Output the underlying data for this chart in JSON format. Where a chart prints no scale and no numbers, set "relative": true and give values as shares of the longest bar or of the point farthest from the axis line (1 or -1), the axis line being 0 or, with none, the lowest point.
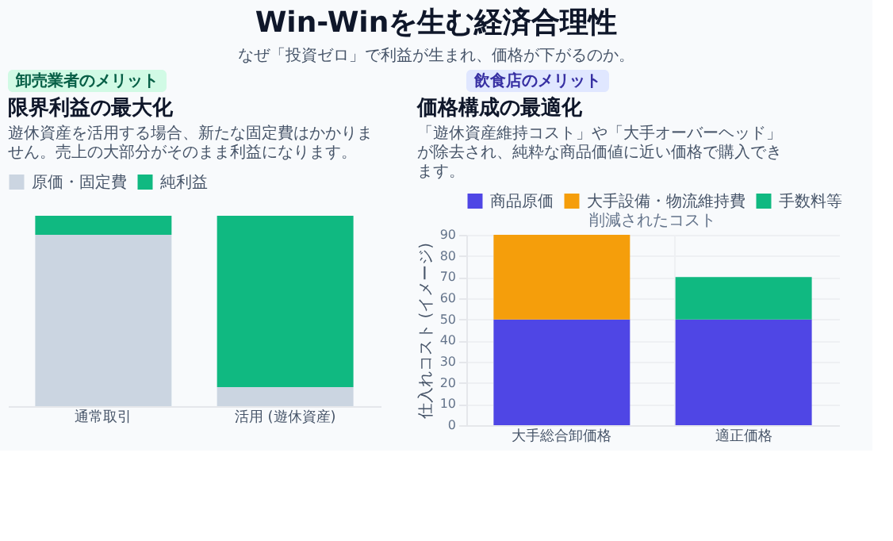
{
  "chart_data": [
    {
      "type": "other",
      "title": "Win-Winを生む経済合理性",
      "subtitle": "なぜ「投資ゼロ」で利益が生まれ、価格が下がるのか。"
    },
    {
      "type": "bar",
      "stacked": true,
      "relative": true,
      "title": "限界利益の最大化",
      "subtitle": "遊休資産を活用する場合、新たな固定費はかかりません。売上の大部分がそのまま利益になります。",
      "annotations": [
        "卸売業者のメリット"
      ],
      "categories": [
        "通常取引",
        "活用 (遊休資産)"
      ],
      "series": [
        {
          "name": "原価・固定費",
          "color": "#cbd5e1",
          "values": [
            0.9,
            0.1
          ]
        },
        {
          "name": "純利益",
          "color": "#10b981",
          "values": [
            0.1,
            0.9
          ]
        }
      ],
      "legend": "top",
      "grid": false
    },
    {
      "type": "bar",
      "stacked": true,
      "title": "価格構成の最適化",
      "subtitle": "「遊休資産維持コスト」や「大手オーバーヘッド」が除去され、純粋な商品価値に近い価格で購入できます。",
      "annotations": [
        "飲食店のメリット",
        "削減されたコスト"
      ],
      "categories": [
        "大手総合卸価格",
        "適正価格"
      ],
      "ylabel": "仕入れコスト (イメージ)",
      "series": [
        {
          "name": "商品原価",
          "color": "#4f46e5",
          "values": [
            50,
            50
          ]
        },
        {
          "name": "大手設備・物流維持費",
          "color": "#f59e0b",
          "values": [
            40,
            0
          ]
        },
        {
          "name": "手数料等",
          "color": "#10b981",
          "values": [
            0,
            20
          ]
        }
      ],
      "ylim": [
        0,
        90
      ],
      "yticks": [
        0,
        10,
        20,
        30,
        40,
        50,
        60,
        70,
        80,
        90
      ],
      "legend": "top",
      "grid": true
    }
  ]
}
